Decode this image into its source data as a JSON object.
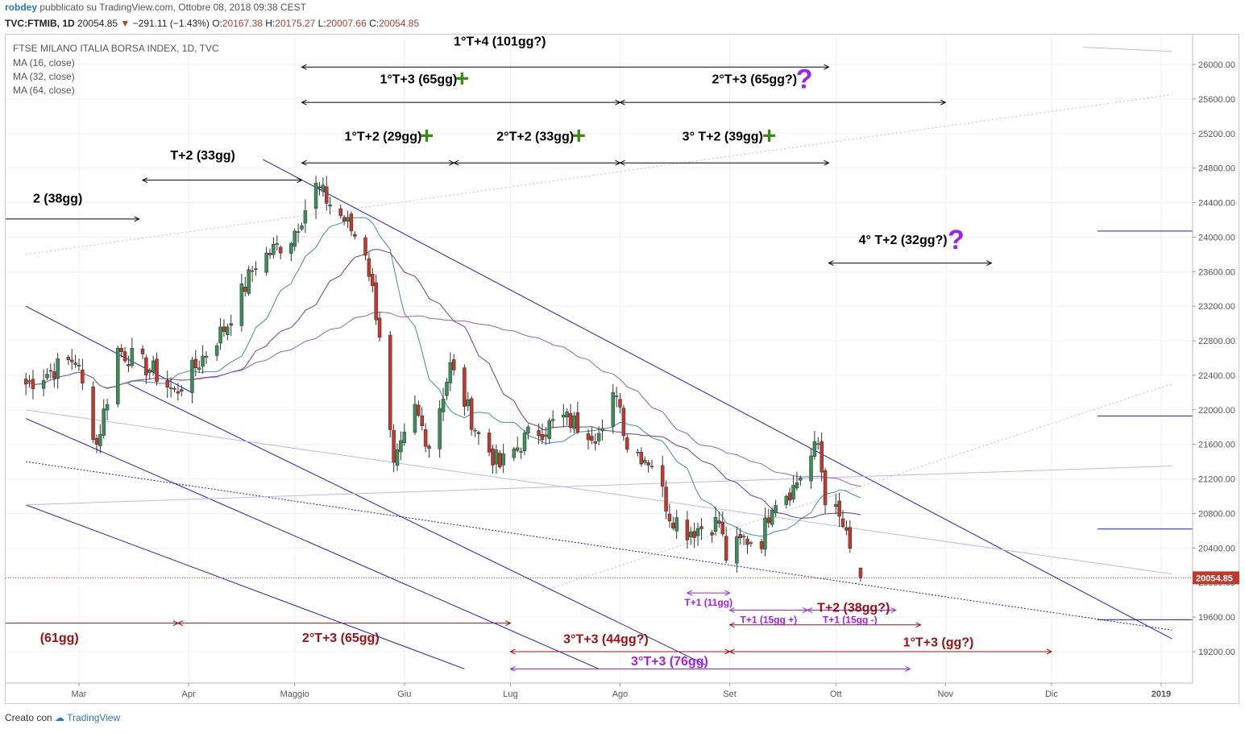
{
  "header": {
    "user": "robdey",
    "published": "pubblicato su TradingView.com, Ottobre 08, 2018 09:38 CEST",
    "symbol": "TVC:FTMIB, 1D",
    "last": "20054.85",
    "change_arrow": "▼",
    "change": "−291.11 (−1.43%)",
    "open_label": "O:",
    "open": "20167.38",
    "high_label": "H:",
    "high": "20175.27",
    "low_label": "L:",
    "low": "20007.66",
    "close_label": "C:",
    "close": "20054.85"
  },
  "legend": {
    "title": "FTSE MILANO ITALIA BORSA INDEX, 1D, TVC",
    "ma16": "MA (16, close)",
    "ma32": "MA (32, close)",
    "ma64": "MA (64, close)"
  },
  "footer": {
    "created": "Creato con",
    "brand": "TradingView"
  },
  "colors": {
    "up": "#3a8f58",
    "down": "#c0392b",
    "ma16": "#3b8ea5",
    "ma32": "#6f3b8f",
    "ma64": "#9a5fb4",
    "trend": "#1a1ae6",
    "accent_purple": "#a020f0",
    "plus_green": "#3a8a1a",
    "dark_red": "#a01010"
  },
  "chart_data": {
    "type": "candlestick",
    "title": "FTSE MILANO ITALIA BORSA INDEX, 1D, TVC",
    "ylim": [
      19000,
      26400
    ],
    "y_ticks": [
      "26000.00",
      "25600.00",
      "25200.00",
      "24800.00",
      "24400.00",
      "24000.00",
      "23600.00",
      "23200.00",
      "22800.00",
      "22400.00",
      "22000.00",
      "21600.00",
      "21200.00",
      "20800.00",
      "20400.00",
      "20000.00",
      "19600.00",
      "19200.00"
    ],
    "x_ticks": [
      "Mar",
      "Apr",
      "Maggio",
      "Giu",
      "Lug",
      "Ago",
      "Set",
      "Ott",
      "Nov",
      "Dic",
      "2019"
    ],
    "last_price_label": "20054.85",
    "anchors": [
      {
        "date": "2018-02-14",
        "close": 22300
      },
      {
        "date": "2018-02-28",
        "close": 22600
      },
      {
        "date": "2018-03-06",
        "close": 21600
      },
      {
        "date": "2018-03-12",
        "close": 22700
      },
      {
        "date": "2018-03-22",
        "close": 22450
      },
      {
        "date": "2018-03-28",
        "close": 22200
      },
      {
        "date": "2018-04-03",
        "close": 22500
      },
      {
        "date": "2018-04-12",
        "close": 23000
      },
      {
        "date": "2018-04-20",
        "close": 23700
      },
      {
        "date": "2018-04-30",
        "close": 24000
      },
      {
        "date": "2018-05-07",
        "close": 24580
      },
      {
        "date": "2018-05-15",
        "close": 24200
      },
      {
        "date": "2018-05-21",
        "close": 23850
      },
      {
        "date": "2018-05-25",
        "close": 22900
      },
      {
        "date": "2018-05-29",
        "close": 21300
      },
      {
        "date": "2018-06-04",
        "close": 22000
      },
      {
        "date": "2018-06-08",
        "close": 21600
      },
      {
        "date": "2018-06-14",
        "close": 22500
      },
      {
        "date": "2018-06-22",
        "close": 21700
      },
      {
        "date": "2018-06-28",
        "close": 21350
      },
      {
        "date": "2018-07-06",
        "close": 21700
      },
      {
        "date": "2018-07-16",
        "close": 21900
      },
      {
        "date": "2018-07-27",
        "close": 21700
      },
      {
        "date": "2018-07-31",
        "close": 22250
      },
      {
        "date": "2018-08-03",
        "close": 21600
      },
      {
        "date": "2018-08-10",
        "close": 21400
      },
      {
        "date": "2018-08-15",
        "close": 20800
      },
      {
        "date": "2018-08-20",
        "close": 20600
      },
      {
        "date": "2018-08-29",
        "close": 20700
      },
      {
        "date": "2018-08-31",
        "close": 20300
      },
      {
        "date": "2018-09-05",
        "close": 20500
      },
      {
        "date": "2018-09-10",
        "close": 20500
      },
      {
        "date": "2018-09-13",
        "close": 20950
      },
      {
        "date": "2018-09-19",
        "close": 21100
      },
      {
        "date": "2018-09-26",
        "close": 21600
      },
      {
        "date": "2018-09-28",
        "close": 21000
      },
      {
        "date": "2018-10-01",
        "close": 20800
      },
      {
        "date": "2018-10-03",
        "close": 20650
      },
      {
        "date": "2018-10-05",
        "close": 20350
      },
      {
        "date": "2018-10-08",
        "close": 20054.85
      }
    ],
    "annotations": [
      {
        "text": "1°T+4 (101gg?)",
        "color": "#000"
      },
      {
        "text": "1°T+3 (65gg)",
        "color": "#000",
        "plus": true
      },
      {
        "text": "2°T+3 (65gg?)",
        "color": "#000",
        "q": true
      },
      {
        "text": "1°T+2 (29gg)",
        "color": "#000",
        "plus": true
      },
      {
        "text": "2°T+2 (33gg)",
        "color": "#000",
        "plus": true
      },
      {
        "text": "3° T+2 (39gg)",
        "color": "#000",
        "plus": true
      },
      {
        "text": "T+2 (33gg)",
        "color": "#000"
      },
      {
        "text": "2 (38gg)",
        "color": "#000"
      },
      {
        "text": "4° T+2 (32gg?)",
        "color": "#000",
        "q": true
      },
      {
        "text": "T+1 (11gg)",
        "color": "#a020f0"
      },
      {
        "text": "T+1 (15gg +)",
        "color": "#a020f0"
      },
      {
        "text": "T+1 (15gg -)",
        "color": "#a020f0"
      },
      {
        "text": "T+2 (38gg?)",
        "color": "#a01010"
      },
      {
        "text": "(61gg)",
        "color": "#a01010"
      },
      {
        "text": "2°T+3 (65gg)",
        "color": "#a01010"
      },
      {
        "text": "3°T+3 (44gg?)",
        "color": "#a01010"
      },
      {
        "text": "1°T+3 (gg?)",
        "color": "#a01010"
      },
      {
        "text": "3°T+3 (76gg)",
        "color": "#a020f0"
      }
    ],
    "markers": {
      "plus": "+",
      "question": "?"
    }
  }
}
